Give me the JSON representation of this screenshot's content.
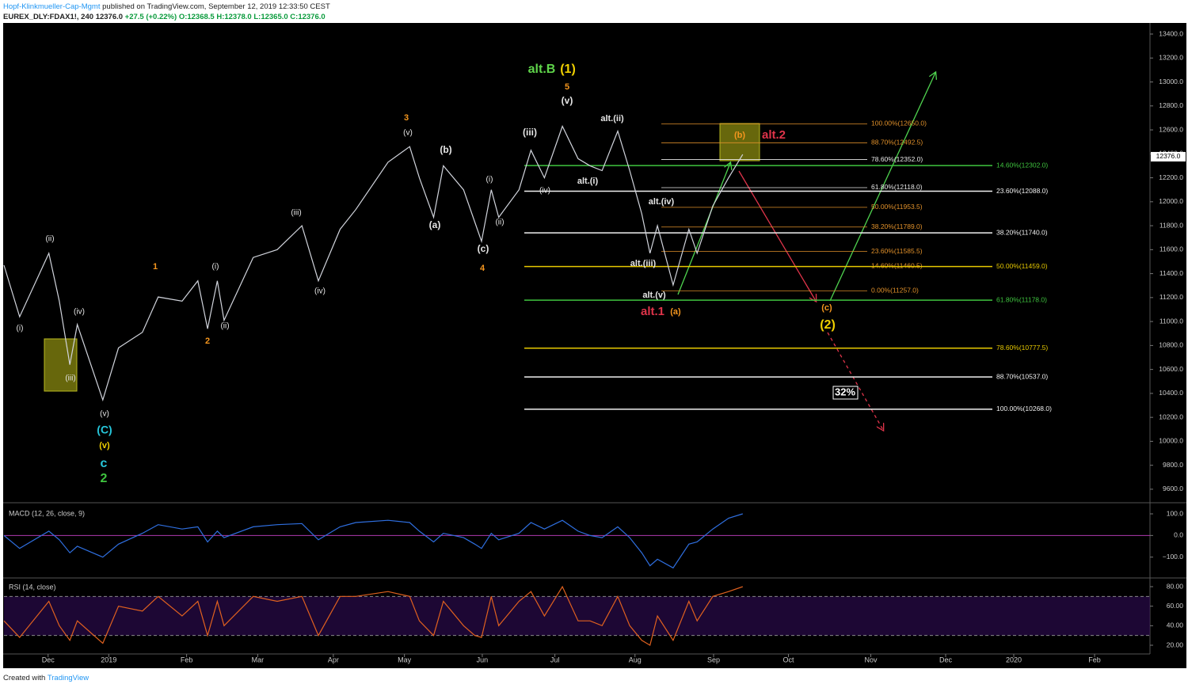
{
  "header": {
    "author": "Hopf-Klinkmueller-Cap-Mgmt",
    "published": "published on TradingView.com, September 12, 2019 12:33:50 CEST",
    "symbol": "EUREX_DLY:FDAX1!, 240",
    "last": "12376.0",
    "change": "+27.5 (+0.22%)",
    "ohlc": "O:12368.5 H:12378.0 L:12365.0 C:12376.0"
  },
  "footer": {
    "created": "Created with",
    "brand": "TradingView"
  },
  "chart_data": [
    {
      "type": "line",
      "color": "#d1d4dc",
      "x": [
        -0.59,
        -0.38,
        0.01,
        0.15,
        0.29,
        0.39,
        0.73,
        0.94,
        1.26,
        1.47,
        1.79,
        2.0,
        2.13,
        2.26,
        2.35,
        2.74,
        3.06,
        3.39,
        3.61,
        3.9,
        4.11,
        4.54,
        4.83,
        4.96,
        5.15,
        5.28,
        5.55,
        5.7,
        5.79,
        5.92,
        6.02,
        6.29,
        6.45,
        6.63,
        6.87,
        7.08,
        7.24,
        7.4,
        7.61,
        7.77,
        7.93,
        8.04,
        8.14,
        8.35,
        8.56,
        8.67,
        8.88,
        9.09,
        9.28
      ],
      "values": [
        11470,
        11040,
        11570,
        11170,
        10640,
        10975,
        10345,
        10780,
        10910,
        11205,
        11170,
        11340,
        10940,
        11340,
        11010,
        11535,
        11600,
        11800,
        11340,
        11770,
        11935,
        12330,
        12460,
        12200,
        11870,
        12300,
        12100,
        11830,
        11670,
        12100,
        11870,
        12100,
        12430,
        12200,
        12630,
        12360,
        12300,
        12260,
        12590,
        12260,
        11900,
        11570,
        11800,
        11305,
        11770,
        11570,
        11965,
        12200,
        12395
      ],
      "xlim": [
        -0.59,
        14.72
      ],
      "ylim": [
        9507,
        13486
      ],
      "xticks": [
        {
          "value": 0,
          "label": "Dec"
        },
        {
          "value": 0.81,
          "label": "2019"
        },
        {
          "value": 1.85,
          "label": "Feb"
        },
        {
          "value": 2.8,
          "label": "Mar"
        },
        {
          "value": 3.81,
          "label": "Apr"
        },
        {
          "value": 4.76,
          "label": "May"
        },
        {
          "value": 5.8,
          "label": "Jun"
        },
        {
          "value": 6.77,
          "label": "Jul"
        },
        {
          "value": 7.84,
          "label": "Aug"
        },
        {
          "value": 8.89,
          "label": "Sep"
        },
        {
          "value": 9.89,
          "label": "Oct"
        },
        {
          "value": 10.99,
          "label": "Nov"
        },
        {
          "value": 11.99,
          "label": "Dec"
        },
        {
          "value": 12.9,
          "label": "2020"
        },
        {
          "value": 13.98,
          "label": "Feb"
        }
      ],
      "yticks": [
        {
          "value": 9600,
          "label": "9600.0"
        },
        {
          "value": 9800,
          "label": "9800.0"
        },
        {
          "value": 10000,
          "label": "10000.0"
        },
        {
          "value": 10200,
          "label": "10200.0"
        },
        {
          "value": 10400,
          "label": "10400.0"
        },
        {
          "value": 10600,
          "label": "10600.0"
        },
        {
          "value": 10800,
          "label": "10800.0"
        },
        {
          "value": 11000,
          "label": "11000.0"
        },
        {
          "value": 11200,
          "label": "11200.0"
        },
        {
          "value": 11400,
          "label": "11400.0"
        },
        {
          "value": 11600,
          "label": "11600.0"
        },
        {
          "value": 11800,
          "label": "11800.0"
        },
        {
          "value": 12000,
          "label": "12000.0"
        },
        {
          "value": 12200,
          "label": "12200.0"
        },
        {
          "value": 12400,
          "label": "12400.0"
        },
        {
          "value": 12600,
          "label": "12600.0"
        },
        {
          "value": 12800,
          "label": "12800.0"
        },
        {
          "value": 13000,
          "label": "13000.0"
        },
        {
          "value": 13200,
          "label": "13200.0"
        },
        {
          "value": 13400,
          "label": "13400.0"
        }
      ],
      "last_price": {
        "value": 12376,
        "label": "12376.0"
      },
      "fib_a": [
        {
          "value": 12650,
          "label": "100.00%(12650.0)",
          "color": "#e0902a"
        },
        {
          "value": 12492.5,
          "label": "88.70%(12492.5)",
          "color": "#e0902a"
        },
        {
          "value": 12352,
          "label": "78.60%(12352.0)",
          "color": "#e8e8e8"
        },
        {
          "value": 12118,
          "label": "61.80%(12118.0)",
          "color": "#e8e8e8"
        },
        {
          "value": 11953.5,
          "label": "50.00%(11953.5)",
          "color": "#e0902a"
        },
        {
          "value": 11789,
          "label": "38.20%(11789.0)",
          "color": "#e0902a"
        },
        {
          "value": 11585.5,
          "label": "23.60%(11585.5)",
          "color": "#e0902a"
        },
        {
          "value": 11460.5,
          "label": "14.60%(11460.5)",
          "color": "#e0902a"
        },
        {
          "value": 11257,
          "label": "0.00%(11257.0)",
          "color": "#e0902a"
        }
      ],
      "fib_b": [
        {
          "value": 12302,
          "label": "14.60%(12302.0)",
          "color": "#3fc43f"
        },
        {
          "value": 12088,
          "label": "23.60%(12088.0)",
          "color": "#f0f0f0"
        },
        {
          "value": 11740,
          "label": "38.20%(11740.0)",
          "color": "#f0f0f0"
        },
        {
          "value": 11459,
          "label": "50.00%(11459.0)",
          "color": "#e6c800"
        },
        {
          "value": 11178,
          "label": "61.80%(11178.0)",
          "color": "#3fc43f"
        },
        {
          "value": 10777.5,
          "label": "78.60%(10777.5)",
          "color": "#e6c800"
        },
        {
          "value": 10537,
          "label": "88.70%(10537.0)",
          "color": "#f0f0f0"
        },
        {
          "value": 10268,
          "label": "100.00%(10268.0)",
          "color": "#f0f0f0"
        }
      ],
      "annotations": [
        {
          "text": "(i)",
          "color": "#e6e6e6"
        },
        {
          "text": "(ii)",
          "color": "#e6e6e6"
        },
        {
          "text": "(iii)",
          "color": "#e6e6e6"
        },
        {
          "text": "(iv)",
          "color": "#e6e6e6"
        },
        {
          "text": "(v)",
          "color": "#e6e6e6"
        },
        {
          "text": "(i)",
          "color": "#e6e6e6"
        },
        {
          "text": "(ii)",
          "color": "#e6e6e6"
        },
        {
          "text": "(iii)",
          "color": "#e6e6e6"
        },
        {
          "text": "(iv)",
          "color": "#e6e6e6"
        },
        {
          "text": "(v)",
          "color": "#e6e6e6"
        },
        {
          "text": "(i)",
          "color": "#e6e6e6"
        },
        {
          "text": "(ii)",
          "color": "#e6e6e6"
        },
        {
          "text": "(iv)",
          "color": "#e6e6e6"
        },
        {
          "text": "(iii)",
          "color": "#e6e6e6"
        },
        {
          "text": "(v)",
          "color": "#e6e6e6"
        },
        {
          "text": "(b)",
          "color": "#e6e6e6"
        },
        {
          "text": "(a)",
          "color": "#e6e6e6"
        },
        {
          "text": "(c)",
          "color": "#e6e6e6"
        },
        {
          "text": "alt.(ii)",
          "color": "#e6e6e6"
        },
        {
          "text": "alt.(i)",
          "color": "#e6e6e6"
        },
        {
          "text": "alt.(iv)",
          "color": "#e6e6e6"
        },
        {
          "text": "alt.(iii)",
          "color": "#e6e6e6"
        },
        {
          "text": "alt.(v)",
          "color": "#e6e6e6"
        },
        {
          "text": "1",
          "color": "#f5961e"
        },
        {
          "text": "2",
          "color": "#f5961e"
        },
        {
          "text": "3",
          "color": "#f5961e"
        },
        {
          "text": "4",
          "color": "#f5961e"
        },
        {
          "text": "5",
          "color": "#f5961e"
        },
        {
          "text": "(a)",
          "color": "#f5961e"
        },
        {
          "text": "(b)",
          "color": "#f5961e"
        },
        {
          "text": "(c)",
          "color": "#f5961e"
        },
        {
          "text": "(C)",
          "color": "#26c6da"
        },
        {
          "text": "(v)",
          "color": "#f0d000"
        },
        {
          "text": "c",
          "color": "#26c6da"
        },
        {
          "text": "2",
          "color": "#3fc43f"
        },
        {
          "text": "alt.B",
          "color": "#5fd44a"
        },
        {
          "text": "(1)",
          "color": "#f0d000"
        },
        {
          "text": "alt.1",
          "color": "#e0344a"
        },
        {
          "text": "alt.2",
          "color": "#e0344a"
        },
        {
          "text": "(2)",
          "color": "#f0d000"
        },
        {
          "text": "32%",
          "color": "#ffffff"
        }
      ]
    },
    {
      "type": "line",
      "title": "MACD (12, 26, close, 9)",
      "color": "#2f6fe0",
      "x": [
        -0.59,
        -0.38,
        0.01,
        0.15,
        0.29,
        0.39,
        0.73,
        0.94,
        1.26,
        1.47,
        1.79,
        2.0,
        2.13,
        2.26,
        2.35,
        2.74,
        3.06,
        3.39,
        3.61,
        3.9,
        4.11,
        4.54,
        4.83,
        4.96,
        5.15,
        5.28,
        5.55,
        5.7,
        5.79,
        5.92,
        6.02,
        6.29,
        6.45,
        6.63,
        6.87,
        7.08,
        7.24,
        7.4,
        7.61,
        7.77,
        7.93,
        8.04,
        8.14,
        8.35,
        8.56,
        8.67,
        8.88,
        9.09,
        9.28
      ],
      "values": [
        0,
        -60,
        20,
        -20,
        -80,
        -50,
        -100,
        -40,
        10,
        50,
        30,
        40,
        -30,
        20,
        -10,
        40,
        50,
        55,
        -20,
        40,
        60,
        70,
        60,
        20,
        -30,
        10,
        -10,
        -40,
        -60,
        10,
        -20,
        10,
        60,
        30,
        70,
        20,
        0,
        -10,
        40,
        -10,
        -80,
        -140,
        -110,
        -150,
        -40,
        -30,
        30,
        80,
        100
      ],
      "ylim": [
        -189,
        144
      ],
      "yticks": [
        {
          "value": 100,
          "label": "100.0"
        },
        {
          "value": 0,
          "label": "0.0"
        },
        {
          "value": -100,
          "label": "−100.0"
        }
      ]
    },
    {
      "type": "line",
      "title": "RSI (14, close)",
      "color": "#e0611f",
      "x": [
        -0.59,
        -0.38,
        0.01,
        0.15,
        0.29,
        0.39,
        0.73,
        0.94,
        1.26,
        1.47,
        1.79,
        2.0,
        2.13,
        2.26,
        2.35,
        2.74,
        3.06,
        3.39,
        3.61,
        3.9,
        4.11,
        4.54,
        4.83,
        4.96,
        5.15,
        5.28,
        5.55,
        5.7,
        5.79,
        5.92,
        6.02,
        6.29,
        6.45,
        6.63,
        6.87,
        7.08,
        7.24,
        7.4,
        7.61,
        7.77,
        7.93,
        8.04,
        8.14,
        8.35,
        8.56,
        8.67,
        8.88,
        9.09,
        9.28
      ],
      "values": [
        45,
        28,
        65,
        40,
        25,
        45,
        22,
        60,
        55,
        70,
        50,
        65,
        30,
        65,
        40,
        70,
        65,
        70,
        30,
        70,
        70,
        75,
        70,
        45,
        30,
        65,
        40,
        30,
        28,
        70,
        40,
        65,
        75,
        50,
        80,
        45,
        45,
        40,
        70,
        40,
        25,
        20,
        50,
        25,
        65,
        45,
        70,
        75,
        80
      ],
      "ylim": [
        11.9,
        87.3
      ],
      "band": [
        30,
        70
      ],
      "yticks": [
        {
          "value": 80,
          "label": "80.00"
        },
        {
          "value": 60,
          "label": "60.00"
        },
        {
          "value": 40,
          "label": "40.00"
        },
        {
          "value": 20,
          "label": "20.00"
        }
      ]
    }
  ]
}
